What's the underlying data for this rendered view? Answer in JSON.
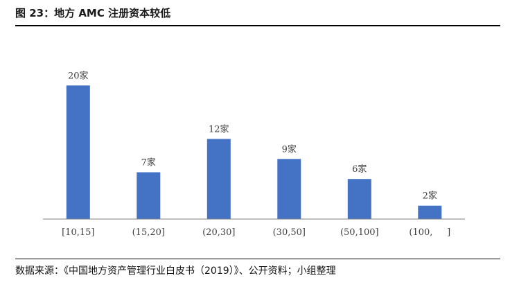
{
  "figure": {
    "title": "图 23：地方 AMC 注册资本较低",
    "source": "数据来源：《中国地方资产管理行业白皮书（2019）》、公开资料；小组整理"
  },
  "colors": {
    "bar": "#4472C4",
    "axis": "#7f7f7f",
    "rule": "#000000"
  },
  "chart_data": {
    "type": "bar",
    "title": "",
    "xlabel": "",
    "ylabel": "",
    "categories": [
      "[10,15]",
      "(15,20]",
      "(20,30]",
      "(30,50]",
      "(50,100]",
      "(100,     ]"
    ],
    "values": [
      20,
      7,
      12,
      9,
      6,
      2
    ],
    "data_labels": [
      "20家",
      "7家",
      "12家",
      "9家",
      "6家",
      "2家"
    ],
    "ylim": [
      0,
      22
    ],
    "grid": false,
    "legend": "none"
  }
}
